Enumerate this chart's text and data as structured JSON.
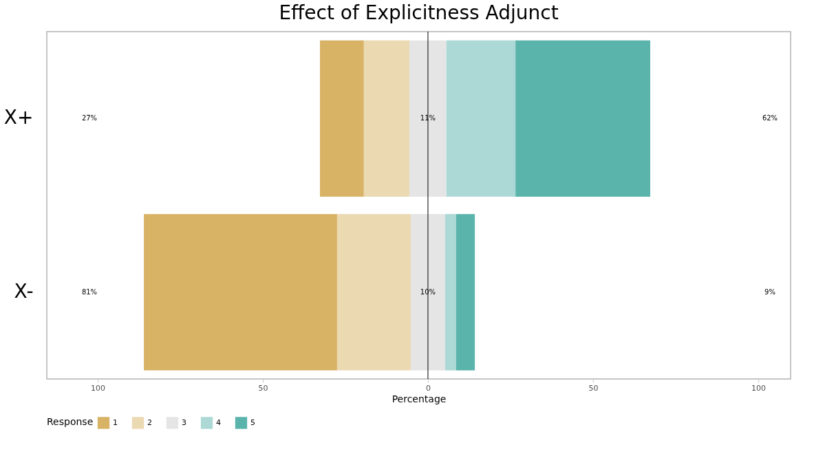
{
  "chart_data": {
    "type": "bar",
    "orientation": "horizontal",
    "title": "Effect of Explicitness Adjunct",
    "xlabel": "Percentage",
    "legend_title": "Response",
    "legend": "bottom",
    "categories": [
      "X+",
      "X-"
    ],
    "series": [
      {
        "name": "1",
        "color": "#d8b365",
        "values": [
          13.3,
          58.5
        ],
        "base": [
          -32.7,
          -86.0
        ]
      },
      {
        "name": "2",
        "color": "#ebd9b2",
        "values": [
          13.8,
          22.3
        ],
        "base": [
          -19.4,
          -27.5
        ]
      },
      {
        "name": "3",
        "color": "#e5e5e5",
        "values": [
          11.2,
          10.4
        ],
        "base": [
          -5.6,
          -5.2
        ]
      },
      {
        "name": "4",
        "color": "#acd9d5",
        "values": [
          20.9,
          3.3
        ],
        "base": [
          5.6,
          5.2
        ]
      },
      {
        "name": "5",
        "color": "#5ab4ac",
        "values": [
          40.8,
          5.7
        ],
        "base": [
          26.5,
          8.5
        ]
      }
    ],
    "xlim": [
      -115.4,
      109.8
    ],
    "xticks": [
      {
        "value": -100,
        "label": "100"
      },
      {
        "value": -50,
        "label": "50"
      },
      0,
      50,
      100
    ],
    "grid": false,
    "ref_lines": [
      {
        "axis": "x",
        "value": 0,
        "color": "#000000"
      }
    ],
    "annotations": [
      "27%",
      "62%",
      "81%",
      "9%",
      {
        "text": "11%",
        "x": 0,
        "y": "X+"
      },
      {
        "text": "10%",
        "x": 0,
        "y": "X-"
      }
    ]
  }
}
